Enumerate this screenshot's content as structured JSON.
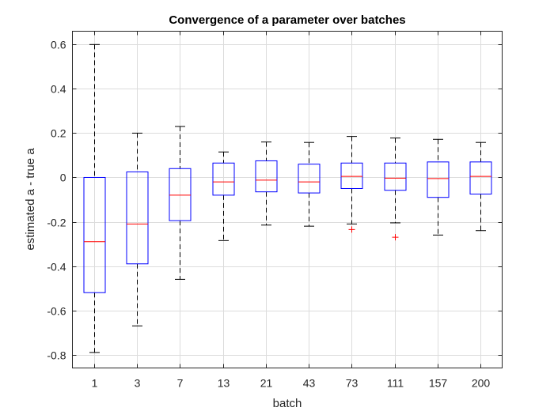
{
  "chart_data": {
    "type": "box",
    "title": "Convergence of a parameter over batches",
    "xlabel": "batch",
    "ylabel": "estimated a - true a",
    "categories": [
      "1",
      "3",
      "7",
      "13",
      "21",
      "43",
      "73",
      "111",
      "157",
      "200"
    ],
    "ylim": [
      -0.86,
      0.66
    ],
    "yticks": [
      0.6,
      0.4,
      0.2,
      0,
      -0.2,
      -0.4,
      -0.6,
      -0.8
    ],
    "ytick_labels": [
      "0.6",
      "0.4",
      "0.2",
      "0",
      "-0.2",
      "-0.4",
      "-0.6",
      "-0.8"
    ],
    "grid": true,
    "colors": {
      "box": "#0000ff",
      "median": "#ff0000",
      "whisker": "#000000",
      "outlier": "#ff0000",
      "grid": "#dcdcdc",
      "axis": "#262626"
    },
    "boxes": [
      {
        "whisker_low": -0.79,
        "q1": -0.52,
        "median": -0.29,
        "q3": 0.0,
        "whisker_high": 0.6,
        "outliers": []
      },
      {
        "whisker_low": -0.67,
        "q1": -0.39,
        "median": -0.21,
        "q3": 0.025,
        "whisker_high": 0.2,
        "outliers": []
      },
      {
        "whisker_low": -0.46,
        "q1": -0.195,
        "median": -0.08,
        "q3": 0.04,
        "whisker_high": 0.23,
        "outliers": []
      },
      {
        "whisker_low": -0.285,
        "q1": -0.08,
        "median": -0.02,
        "q3": 0.065,
        "whisker_high": 0.115,
        "outliers": []
      },
      {
        "whisker_low": -0.215,
        "q1": -0.065,
        "median": -0.012,
        "q3": 0.075,
        "whisker_high": 0.16,
        "outliers": []
      },
      {
        "whisker_low": -0.22,
        "q1": -0.07,
        "median": -0.02,
        "q3": 0.06,
        "whisker_high": 0.158,
        "outliers": []
      },
      {
        "whisker_low": -0.21,
        "q1": -0.05,
        "median": 0.005,
        "q3": 0.065,
        "whisker_high": 0.185,
        "outliers": [
          -0.235
        ]
      },
      {
        "whisker_low": -0.205,
        "q1": -0.058,
        "median": -0.003,
        "q3": 0.065,
        "whisker_high": 0.178,
        "outliers": [
          -0.27
        ]
      },
      {
        "whisker_low": -0.26,
        "q1": -0.09,
        "median": -0.005,
        "q3": 0.07,
        "whisker_high": 0.172,
        "outliers": []
      },
      {
        "whisker_low": -0.24,
        "q1": -0.075,
        "median": 0.005,
        "q3": 0.07,
        "whisker_high": 0.158,
        "outliers": []
      }
    ]
  }
}
